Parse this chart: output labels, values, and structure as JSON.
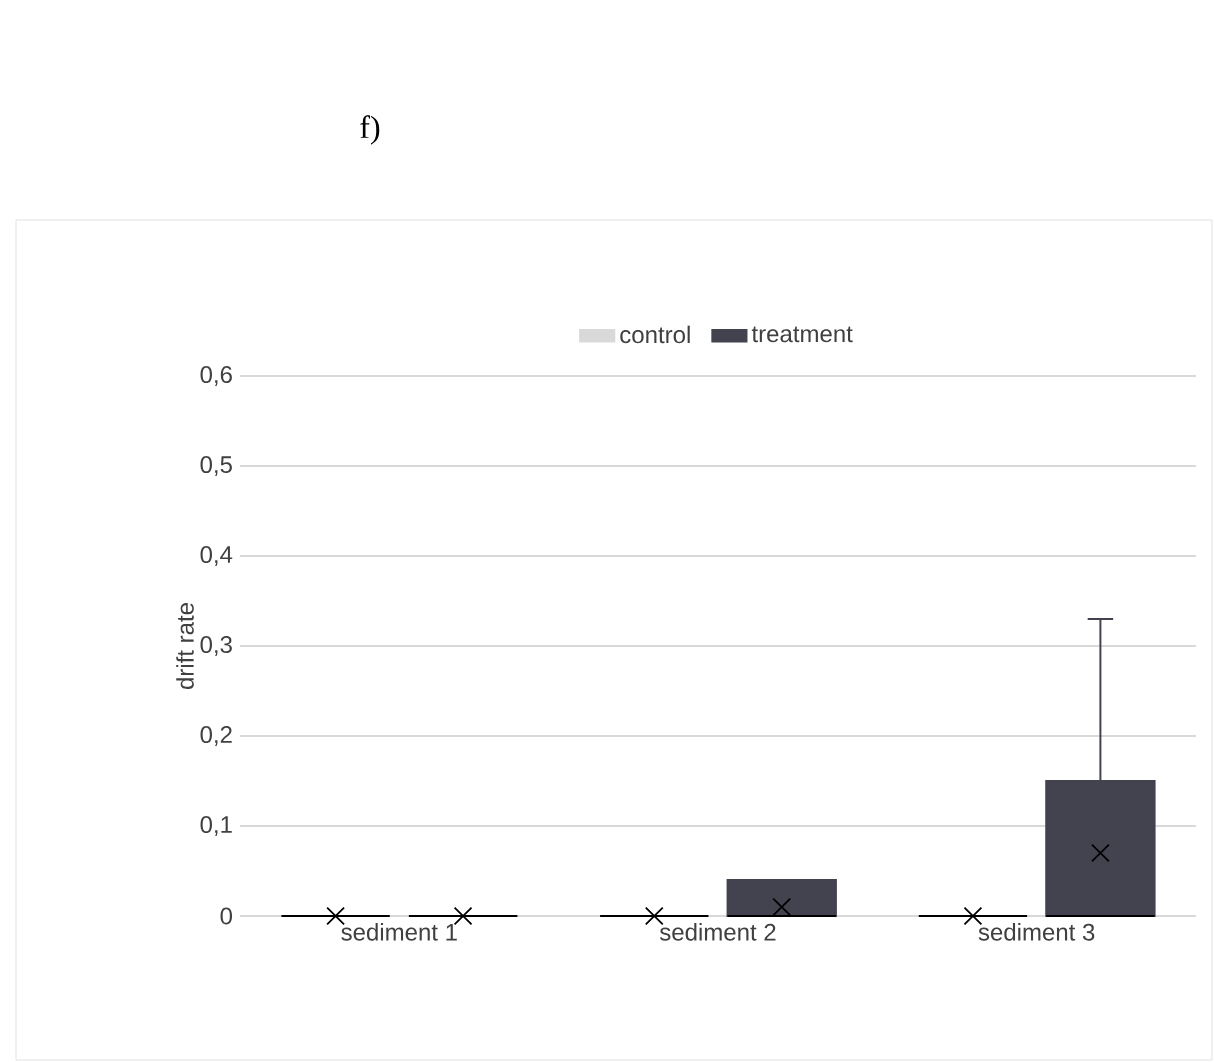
{
  "chart_data": {
    "type": "box",
    "title": "f)",
    "ylabel": "drift rate",
    "categories": [
      "sediment 1",
      "sediment 2",
      "sediment 3"
    ],
    "series": [
      {
        "name": "control",
        "color": "#d9d9d9",
        "boxes": [
          {
            "low": 0,
            "q1": 0,
            "median": 0,
            "q3": 0,
            "high": 0,
            "mean": 0
          },
          {
            "low": 0,
            "q1": 0,
            "median": 0,
            "q3": 0,
            "high": 0,
            "mean": 0
          },
          {
            "low": 0,
            "q1": 0,
            "median": 0,
            "q3": 0,
            "high": 0,
            "mean": 0
          }
        ]
      },
      {
        "name": "treatment",
        "color": "#434350",
        "boxes": [
          {
            "low": 0,
            "q1": 0,
            "median": 0,
            "q3": 0,
            "high": 0,
            "mean": 0
          },
          {
            "low": 0,
            "q1": 0,
            "median": 0,
            "q3": 0.04,
            "high": 0.04,
            "mean": 0.01
          },
          {
            "low": 0,
            "q1": 0,
            "median": 0,
            "q3": 0.15,
            "high": 0.33,
            "mean": 0.07
          }
        ]
      }
    ],
    "ylim": [
      0,
      0.6
    ],
    "yticks": [
      0,
      {
        "value": 0.1,
        "label": "0,1"
      },
      {
        "value": 0.2,
        "label": "0,2"
      },
      {
        "value": 0.3,
        "label": "0,3"
      },
      {
        "value": 0.4,
        "label": "0,4"
      },
      {
        "value": 0.5,
        "label": "0,5"
      },
      {
        "value": 0.6,
        "label": "0,6"
      }
    ],
    "grid": "y",
    "legend": "top",
    "marker": "cross"
  }
}
